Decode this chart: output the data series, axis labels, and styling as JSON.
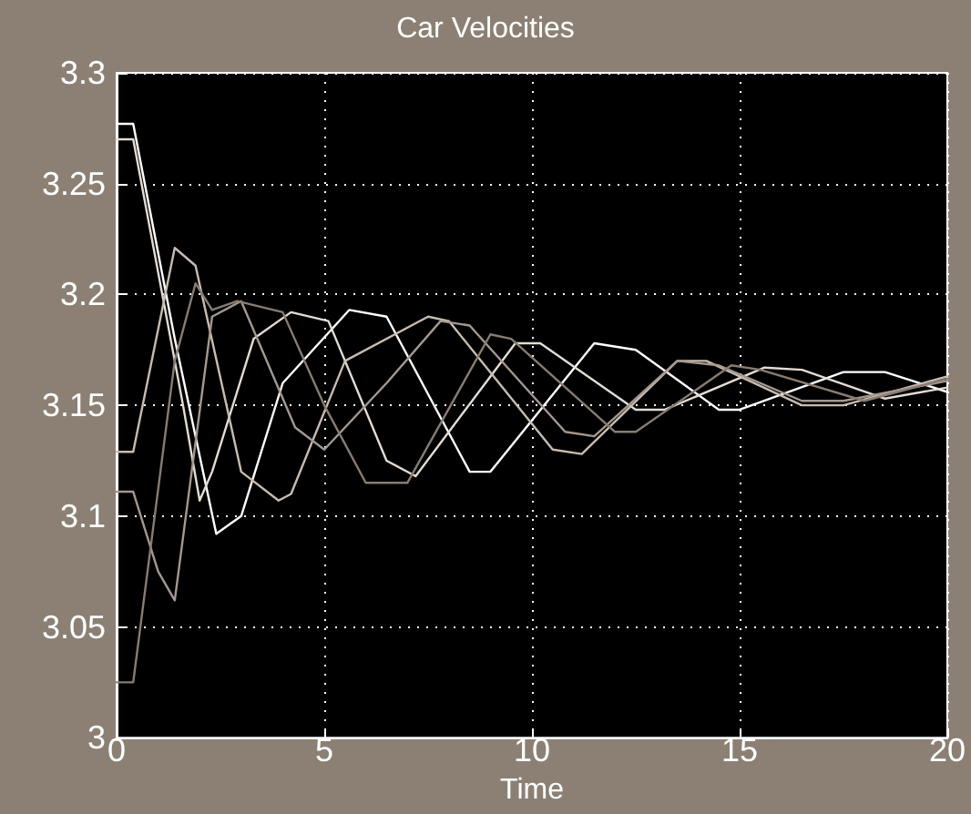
{
  "chart_data": {
    "type": "line",
    "title": "Car Velocities",
    "xlabel": "Time",
    "xlim": [
      0,
      20
    ],
    "xticks": [
      0,
      5,
      10,
      15,
      20
    ],
    "ylim": [
      3,
      3.3
    ],
    "yticks": [
      3,
      3.05,
      3.1,
      3.15,
      3.2,
      3.25,
      3.3
    ],
    "grid": true,
    "marker": "none",
    "line_style": "solid",
    "series": [
      {
        "color": "#ffffff",
        "x": [
          0,
          0.4,
          1.4,
          2.4,
          3.0,
          4.0,
          5.6,
          6.5,
          8.5,
          9.0,
          11.5,
          12.5,
          14.5,
          15.0,
          17.5,
          18.5,
          20
        ],
        "values": [
          3.277,
          3.277,
          3.18,
          3.092,
          3.1,
          3.16,
          3.193,
          3.19,
          3.12,
          3.12,
          3.178,
          3.175,
          3.148,
          3.148,
          3.165,
          3.165,
          3.156
        ]
      },
      {
        "color": "#e4dcd4",
        "x": [
          0,
          0.4,
          1.6,
          2.0,
          2.3,
          3.3,
          4.2,
          5.1,
          6.5,
          7.2,
          9.6,
          10.2,
          12.5,
          13.2,
          15.6,
          16.5,
          18.5,
          20
        ],
        "values": [
          3.27,
          3.27,
          3.15,
          3.107,
          3.12,
          3.18,
          3.192,
          3.188,
          3.125,
          3.118,
          3.178,
          3.178,
          3.148,
          3.148,
          3.167,
          3.166,
          3.153,
          3.158
        ]
      },
      {
        "color": "#c8bcb0",
        "x": [
          0,
          0.4,
          1.4,
          1.9,
          3.0,
          3.9,
          4.2,
          5.5,
          7.5,
          8.0,
          10.5,
          11.2,
          13.5,
          14.2,
          16.5,
          17.5,
          20
        ],
        "values": [
          3.129,
          3.129,
          3.221,
          3.213,
          3.12,
          3.107,
          3.11,
          3.17,
          3.19,
          3.188,
          3.13,
          3.128,
          3.17,
          3.17,
          3.15,
          3.15,
          3.163
        ]
      },
      {
        "color": "#a49890",
        "x": [
          0,
          0.4,
          1.0,
          1.4,
          2.3,
          3.0,
          4.3,
          5.0,
          6.5,
          7.8,
          8.5,
          10.8,
          11.5,
          13.5,
          14.5,
          16.5,
          17.5,
          20
        ],
        "values": [
          3.111,
          3.111,
          3.075,
          3.062,
          3.19,
          3.197,
          3.14,
          3.13,
          3.16,
          3.188,
          3.186,
          3.138,
          3.136,
          3.17,
          3.168,
          3.152,
          3.152,
          3.161
        ]
      },
      {
        "color": "#887c72",
        "x": [
          0,
          0.4,
          1.4,
          1.9,
          2.3,
          2.9,
          4.0,
          5.0,
          6.0,
          7.0,
          9.0,
          9.5,
          12.0,
          12.5,
          14.8,
          15.5,
          18,
          20
        ],
        "values": [
          3.025,
          3.025,
          3.17,
          3.205,
          3.193,
          3.197,
          3.192,
          3.15,
          3.115,
          3.115,
          3.182,
          3.18,
          3.138,
          3.138,
          3.168,
          3.166,
          3.152,
          3.162
        ]
      }
    ]
  }
}
